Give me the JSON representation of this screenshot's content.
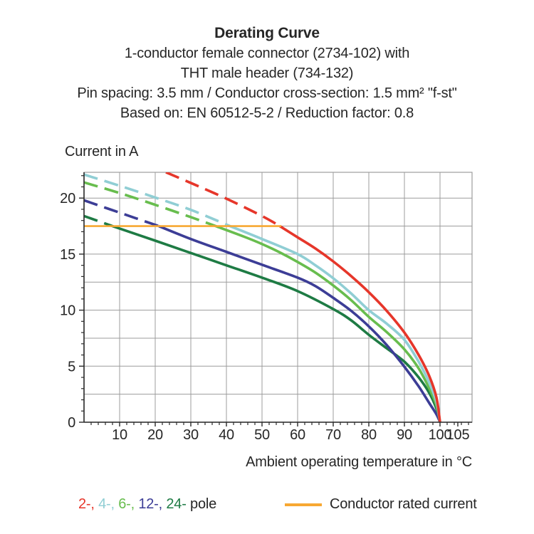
{
  "title": {
    "line1": "Derating Curve",
    "line2": "1-conductor female connector (2734-102) with",
    "line3": "THT male header (734-132)",
    "line4": "Pin spacing: 3.5 mm / Conductor cross-section: 1.5 mm² \"f-st\"",
    "line5": "Based on: EN 60512-5-2 / Reduction factor: 0.8"
  },
  "chart_data": {
    "type": "line",
    "title": "Derating Curve",
    "ylabel": "Current in A",
    "xlabel": "Ambient operating temperature in °C",
    "xlim": [
      0,
      109
    ],
    "ylim": [
      0,
      22.3
    ],
    "x_major_ticks": [
      10,
      20,
      30,
      40,
      50,
      60,
      70,
      80,
      90,
      100,
      105
    ],
    "x_minor_step": 2,
    "y_major_ticks": [
      0,
      5,
      10,
      15,
      20
    ],
    "y_minor_step": 1,
    "x_gridlines": [
      10,
      20,
      30,
      40,
      50,
      60,
      70,
      80,
      90,
      100
    ],
    "y_gridlines": [
      2.5,
      5,
      7.5,
      10,
      12.5,
      15,
      17.5,
      20
    ],
    "grid": true,
    "legend_position": "bottom",
    "note": "curves are dashed above the conductor rated current (17.5 A) and solid below it; all curves fall to 0 A at 100 °C",
    "rated_current": {
      "value": 17.5,
      "x_start": 0,
      "x_end": 55.4,
      "color": "#f7a833",
      "label": "Conductor rated current"
    },
    "series": [
      {
        "name": "24-pole",
        "color": "#1e7b44",
        "solid_from_x": 8,
        "points": [
          [
            0,
            18.4
          ],
          [
            8,
            17.5
          ],
          [
            20,
            16.2
          ],
          [
            30,
            15.1
          ],
          [
            40,
            14.0
          ],
          [
            50,
            12.9
          ],
          [
            60,
            11.7
          ],
          [
            70,
            10.1
          ],
          [
            75,
            9.1
          ],
          [
            80,
            7.8
          ],
          [
            85,
            6.6
          ],
          [
            90,
            5.4
          ],
          [
            94,
            4.0
          ],
          [
            97,
            2.6
          ],
          [
            99,
            1.2
          ],
          [
            100,
            0
          ]
        ]
      },
      {
        "name": "12-pole",
        "color": "#3c3d96",
        "solid_from_x": 21,
        "points": [
          [
            0,
            19.8
          ],
          [
            10,
            18.7
          ],
          [
            21,
            17.5
          ],
          [
            30,
            16.35
          ],
          [
            40,
            15.2
          ],
          [
            50,
            14.05
          ],
          [
            60,
            12.9
          ],
          [
            65,
            12.15
          ],
          [
            70,
            11.1
          ],
          [
            75,
            9.95
          ],
          [
            80,
            8.55
          ],
          [
            85,
            6.9
          ],
          [
            90,
            4.95
          ],
          [
            94,
            3.2
          ],
          [
            97,
            1.7
          ],
          [
            99,
            0.7
          ],
          [
            100,
            0
          ]
        ]
      },
      {
        "name": "6-pole",
        "color": "#68bd4e",
        "solid_from_x": 37,
        "points": [
          [
            0,
            21.4
          ],
          [
            10,
            20.45
          ],
          [
            20,
            19.4
          ],
          [
            30,
            18.3
          ],
          [
            37,
            17.5
          ],
          [
            45,
            16.55
          ],
          [
            50,
            15.9
          ],
          [
            55,
            15.15
          ],
          [
            60,
            14.3
          ],
          [
            65,
            13.35
          ],
          [
            70,
            12.2
          ],
          [
            75,
            10.9
          ],
          [
            80,
            9.4
          ],
          [
            85,
            8.05
          ],
          [
            90,
            6.5
          ],
          [
            94,
            4.8
          ],
          [
            97,
            3.0
          ],
          [
            99,
            1.5
          ],
          [
            100,
            0
          ]
        ]
      },
      {
        "name": "4-pole",
        "color": "#90ced4",
        "solid_from_x": 41,
        "points": [
          [
            0,
            22.1
          ],
          [
            10,
            21.1
          ],
          [
            20,
            20.05
          ],
          [
            30,
            18.95
          ],
          [
            41,
            17.5
          ],
          [
            50,
            16.35
          ],
          [
            60,
            15.0
          ],
          [
            65,
            14.0
          ],
          [
            70,
            12.85
          ],
          [
            75,
            11.5
          ],
          [
            80,
            10.0
          ],
          [
            85,
            8.8
          ],
          [
            90,
            7.35
          ],
          [
            94,
            5.4
          ],
          [
            97,
            3.5
          ],
          [
            99,
            1.8
          ],
          [
            100,
            0
          ]
        ]
      },
      {
        "name": "2-pole",
        "color": "#e6362a",
        "solid_from_x": 55,
        "points": [
          [
            23,
            22.3
          ],
          [
            30,
            21.35
          ],
          [
            40,
            19.95
          ],
          [
            50,
            18.4
          ],
          [
            55,
            17.5
          ],
          [
            60,
            16.5
          ],
          [
            65,
            15.5
          ],
          [
            70,
            14.35
          ],
          [
            75,
            13.05
          ],
          [
            80,
            11.6
          ],
          [
            85,
            9.95
          ],
          [
            90,
            8.0
          ],
          [
            94,
            6.0
          ],
          [
            97,
            4.1
          ],
          [
            99,
            2.2
          ],
          [
            100,
            0
          ]
        ]
      }
    ]
  },
  "legend": {
    "pole_legend": {
      "entries": [
        {
          "label": "2-,",
          "color": "#e6362a",
          "name": "2-pole"
        },
        {
          "label": "4-,",
          "color": "#90ced4",
          "name": "4-pole"
        },
        {
          "label": "6-,",
          "color": "#68bd4e",
          "name": "6-pole"
        },
        {
          "label": "12-,",
          "color": "#3c3d96",
          "name": "12-pole"
        },
        {
          "label": "24-",
          "color": "#1e7b44",
          "name": "24-pole"
        }
      ],
      "suffix": "pole"
    },
    "rated_label": "Conductor rated current"
  },
  "colors": {
    "grid": "#9c9c9c",
    "frame": "#9c9c9c",
    "axis": "#2b2b2b",
    "text": "#262626",
    "background": "#ffffff"
  }
}
